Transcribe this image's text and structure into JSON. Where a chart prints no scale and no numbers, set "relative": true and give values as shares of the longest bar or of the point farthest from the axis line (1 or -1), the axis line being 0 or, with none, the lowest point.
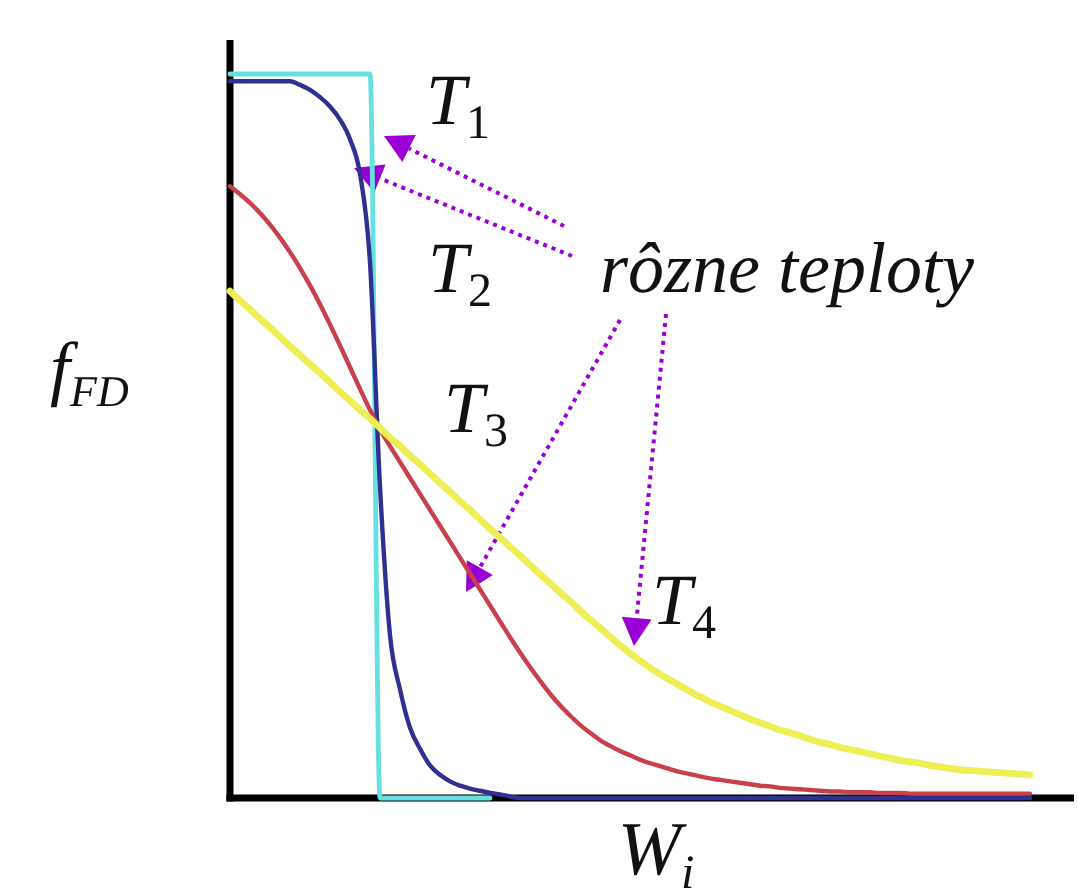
{
  "chart_data": {
    "type": "line",
    "relative": true,
    "xlabel": "W$_{i}$",
    "ylabel": "f$_{FD}$",
    "annotations": [
      "rôzne teploty"
    ],
    "categories": [
      null,
      null,
      null,
      null,
      null,
      null,
      null,
      null,
      null,
      null,
      null,
      null,
      null,
      null,
      null,
      null,
      null,
      null,
      null,
      null,
      null,
      null,
      null,
      null,
      null,
      null,
      null,
      null,
      null,
      null,
      null,
      null,
      null,
      null,
      null,
      null,
      null,
      null,
      null,
      null,
      null,
      null,
      null,
      null,
      null,
      null,
      null,
      null,
      null,
      null,
      null,
      null,
      null,
      null,
      null,
      null,
      null,
      null,
      null,
      null,
      null,
      null,
      null,
      null,
      null,
      null,
      null,
      null,
      null,
      null,
      null,
      null,
      null,
      null,
      null,
      null,
      null,
      null,
      null,
      null,
      null
    ],
    "series": [
      {
        "name": "T$_{1}$",
        "color": "#66e0e0",
        "values": [
          1,
          1,
          1,
          1,
          1,
          1,
          1,
          1,
          1,
          1,
          1,
          1,
          1,
          1,
          1,
          0,
          0,
          0,
          0,
          0,
          0,
          0,
          0,
          0,
          0,
          0,
          0,
          null,
          null,
          null,
          null,
          null,
          null,
          null,
          null,
          null,
          null,
          null,
          null,
          null,
          null,
          null,
          null,
          null,
          null,
          null,
          null,
          null,
          null,
          null,
          null,
          null,
          null,
          null,
          null,
          null,
          null,
          null,
          null,
          null,
          null,
          null,
          null,
          null,
          null,
          null,
          null,
          null,
          null,
          null,
          null,
          null,
          null,
          null,
          null,
          null,
          null,
          null,
          null,
          null,
          null
        ]
      },
      {
        "name": "T$_{2}$",
        "color": "#303090",
        "values": [
          0.99,
          0.99,
          0.99,
          0.99,
          0.99,
          0.99,
          0.99,
          0.985,
          0.978,
          0.968,
          0.955,
          0.937,
          0.91,
          0.862,
          0.74,
          0.43,
          0.225,
          0.15,
          0.097,
          0.068,
          0.045,
          0.032,
          0.023,
          0.017,
          0.013,
          0.01,
          0.007,
          0.005,
          0.002,
          0,
          0,
          0,
          0,
          0,
          0,
          0,
          0,
          0,
          0,
          0,
          0,
          0,
          0,
          0,
          0,
          0,
          0,
          0,
          0,
          0,
          0,
          0,
          0,
          0,
          0,
          0,
          0,
          0,
          0,
          0,
          0,
          0,
          0,
          0,
          0,
          0,
          0,
          0,
          0,
          0,
          0,
          0,
          0,
          0,
          0,
          0,
          0,
          0,
          0,
          0,
          0
        ]
      },
      {
        "name": "T$_{3}$",
        "color": "#c8404c",
        "values": [
          0.845,
          0.834,
          0.822,
          0.808,
          0.792,
          0.774,
          0.754,
          0.732,
          0.708,
          0.682,
          0.654,
          0.625,
          0.595,
          0.565,
          0.536,
          0.509,
          0.486,
          0.464,
          0.442,
          0.42,
          0.398,
          0.376,
          0.354,
          0.332,
          0.31,
          0.288,
          0.266,
          0.244,
          0.222,
          0.201,
          0.181,
          0.162,
          0.144,
          0.128,
          0.114,
          0.101,
          0.09,
          0.08,
          0.072,
          0.065,
          0.059,
          0.053,
          0.048,
          0.044,
          0.04,
          0.036,
          0.033,
          0.03,
          0.027,
          0.025,
          0.023,
          0.021,
          0.019,
          0.017,
          0.016,
          0.014,
          0.013,
          0.012,
          0.011,
          0.01,
          0.009,
          0.009,
          0.008,
          0.008,
          0.008,
          0.007,
          0.007,
          0.007,
          0.006,
          0.006,
          0.006,
          0.006,
          0.006,
          0.006,
          0.006,
          0.006,
          0.006,
          0.006,
          0.006,
          0.006,
          0.006
        ]
      },
      {
        "name": "T$_{4}$",
        "color": "#eeee55",
        "values": [
          0.7,
          0.687,
          0.675,
          0.662,
          0.65,
          0.637,
          0.624,
          0.612,
          0.599,
          0.587,
          0.574,
          0.561,
          0.549,
          0.536,
          0.524,
          0.511,
          0.498,
          0.486,
          0.473,
          0.461,
          0.448,
          0.435,
          0.423,
          0.41,
          0.398,
          0.385,
          0.372,
          0.36,
          0.347,
          0.335,
          0.322,
          0.309,
          0.297,
          0.284,
          0.272,
          0.259,
          0.247,
          0.235,
          0.223,
          0.211,
          0.2,
          0.19,
          0.18,
          0.171,
          0.163,
          0.155,
          0.147,
          0.14,
          0.133,
          0.127,
          0.121,
          0.115,
          0.109,
          0.104,
          0.099,
          0.094,
          0.09,
          0.086,
          0.081,
          0.077,
          0.074,
          0.07,
          0.067,
          0.064,
          0.061,
          0.058,
          0.055,
          0.052,
          0.05,
          0.048,
          0.045,
          0.043,
          0.041,
          0.039,
          0.038,
          0.037,
          0.036,
          0.035,
          0.034,
          0.033,
          0.032
        ]
      }
    ]
  }
}
